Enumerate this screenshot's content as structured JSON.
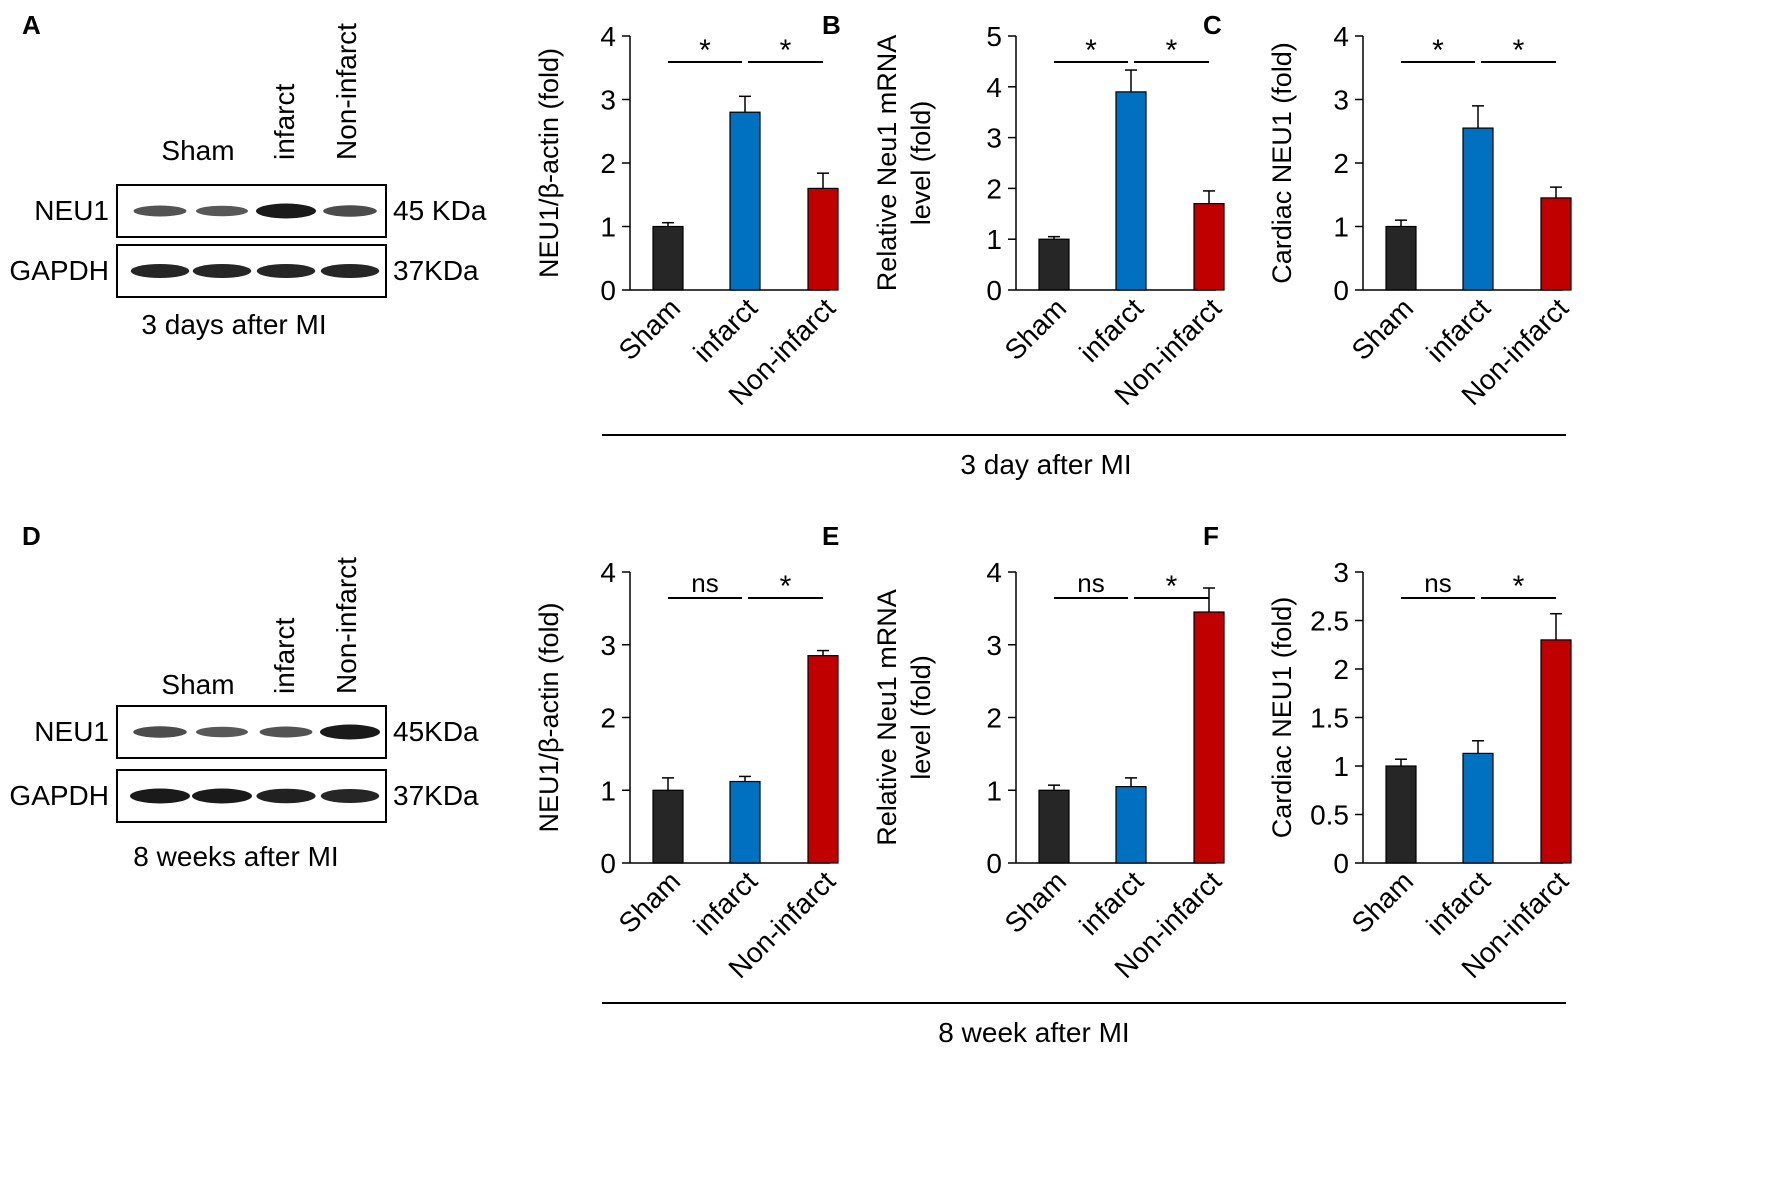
{
  "panels": {
    "A": {
      "letter": "A",
      "lane_labels": [
        "Sham",
        "infarct",
        "Non-infarct"
      ],
      "bands": [
        {
          "name": "NEU1",
          "size": "45 KDa",
          "intensities": [
            0.55,
            0.5,
            1.0,
            0.6
          ]
        },
        {
          "name": "GAPDH",
          "size": "37KDa",
          "intensities": [
            0.9,
            0.9,
            0.9,
            0.9
          ]
        }
      ],
      "caption": "3 days after MI"
    },
    "D": {
      "letter": "D",
      "lane_labels": [
        "Sham",
        "infarct",
        "Non-infarct"
      ],
      "bands": [
        {
          "name": "NEU1",
          "size": "45KDa",
          "intensities": [
            0.6,
            0.5,
            0.55,
            1.0
          ]
        },
        {
          "name": "GAPDH",
          "size": "37KDa",
          "intensities": [
            1.0,
            1.0,
            0.95,
            0.9
          ]
        }
      ],
      "caption": "8 weeks after MI"
    }
  },
  "group_labels": {
    "top": "3 day after MI",
    "bottom": "8 week after MI"
  },
  "colors": {
    "sham": "#262626",
    "infarct": "#0070C0",
    "non_infarct": "#C00000"
  },
  "chart_data": [
    {
      "panel": "",
      "type": "bar",
      "categories": [
        "Sham",
        "infarct",
        "Non-infarct"
      ],
      "values": [
        1.0,
        2.8,
        1.6
      ],
      "errors": [
        0.06,
        0.25,
        0.24
      ],
      "ylabel": "NEU1/β-actin (fold)",
      "ylim": [
        0,
        4
      ],
      "yticks": [
        "0",
        "1",
        "2",
        "3",
        "4"
      ],
      "significance": [
        "*",
        "*"
      ]
    },
    {
      "panel": "B",
      "type": "bar",
      "categories": [
        "Sham",
        "infarct",
        "Non-infarct"
      ],
      "values": [
        1.0,
        3.9,
        1.7
      ],
      "errors": [
        0.05,
        0.43,
        0.25
      ],
      "ylabel": [
        "Relative Neu1 mRNA",
        "level (fold)"
      ],
      "ylim": [
        0,
        5
      ],
      "yticks": [
        "0",
        "1",
        "2",
        "3",
        "4",
        "5"
      ],
      "significance": [
        "*",
        "*"
      ]
    },
    {
      "panel": "C",
      "type": "bar",
      "categories": [
        "Sham",
        "infarct",
        "Non-infarct"
      ],
      "values": [
        1.0,
        2.55,
        1.45
      ],
      "errors": [
        0.1,
        0.35,
        0.17
      ],
      "ylabel": "Cardiac NEU1 (fold)",
      "ylim": [
        0,
        4
      ],
      "yticks": [
        "0",
        "1",
        "2",
        "3",
        "4"
      ],
      "significance": [
        "*",
        "*"
      ]
    },
    {
      "panel": "",
      "type": "bar",
      "categories": [
        "Sham",
        "infarct",
        "Non-infarct"
      ],
      "values": [
        1.0,
        1.12,
        2.85
      ],
      "errors": [
        0.17,
        0.07,
        0.07
      ],
      "ylabel": "NEU1/β-actin (fold)",
      "ylim": [
        0,
        4
      ],
      "yticks": [
        "0",
        "1",
        "2",
        "3",
        "4"
      ],
      "significance": [
        "ns",
        "*"
      ]
    },
    {
      "panel": "E",
      "type": "bar",
      "categories": [
        "Sham",
        "infarct",
        "Non-infarct"
      ],
      "values": [
        1.0,
        1.05,
        3.45
      ],
      "errors": [
        0.07,
        0.12,
        0.33
      ],
      "ylabel": [
        "Relative Neu1 mRNA",
        "level (fold)"
      ],
      "ylim": [
        0,
        4
      ],
      "yticks": [
        "0",
        "1",
        "2",
        "3",
        "4"
      ],
      "significance": [
        "ns",
        "*"
      ]
    },
    {
      "panel": "F",
      "type": "bar",
      "categories": [
        "Sham",
        "infarct",
        "Non-infarct"
      ],
      "values": [
        1.0,
        1.13,
        2.3
      ],
      "errors": [
        0.07,
        0.13,
        0.27
      ],
      "ylabel": "Cardiac NEU1 (fold)",
      "ylim": [
        0,
        3
      ],
      "yticks": [
        "0",
        "0.5",
        "1",
        "1.5",
        "2",
        "2.5",
        "3"
      ],
      "significance": [
        "ns",
        "*"
      ]
    }
  ]
}
